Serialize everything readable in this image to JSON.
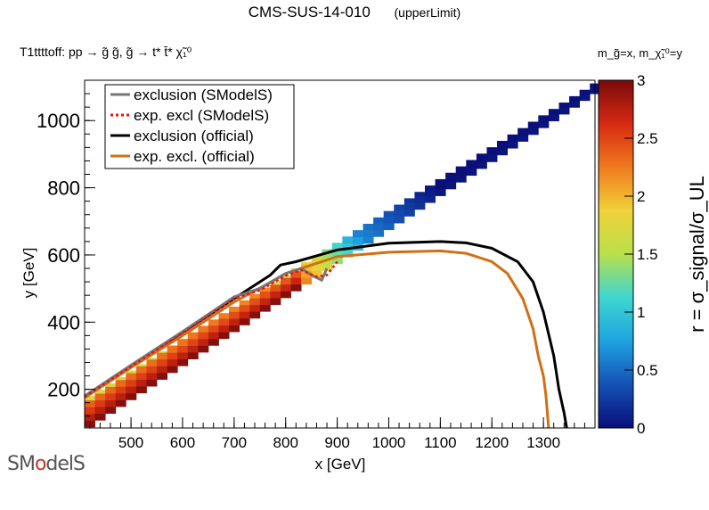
{
  "header": {
    "title": "CMS-SUS-14-010",
    "subtitle": "(upperLimit)",
    "process": "T1ttttoff: pp → g̃ g̃, g̃ → t* t̄* χ̃₁⁰",
    "mass_assignment": "m_g̃=x, m_χ̃₁⁰=y"
  },
  "logo": {
    "text_a": "SM",
    "text_b": "o",
    "text_c": "delS"
  },
  "chart_data": {
    "type": "heatmap",
    "xlabel": "x [GeV]",
    "ylabel": "y [GeV]",
    "zlabel": "r = σ_signal/σ_UL",
    "xlim": [
      410,
      1400
    ],
    "ylim": [
      85,
      1120
    ],
    "zlim": [
      0,
      3
    ],
    "x_ticks": [
      500,
      600,
      700,
      800,
      900,
      1000,
      1100,
      1200,
      1300
    ],
    "y_ticks": [
      200,
      400,
      600,
      800,
      1000
    ],
    "z_ticks": [
      0,
      0.5,
      1,
      1.5,
      2,
      2.5,
      3
    ],
    "colorscale": [
      "#0a0f7a",
      "#1451b5",
      "#1ea3e0",
      "#3fd6d0",
      "#b8e04a",
      "#f0d23a",
      "#f07a1e",
      "#d62a12",
      "#7a0a0a"
    ],
    "legend": {
      "placement": "top-left",
      "entries": [
        {
          "label": "exclusion (SModelS)",
          "color": "#777777",
          "dash": "solid"
        },
        {
          "label": "exp. excl (SModelS)",
          "color": "#ee1111",
          "dash": "dotted"
        },
        {
          "label": "exclusion (official)",
          "color": "#000000",
          "dash": "solid"
        },
        {
          "label": "exp. excl. (official)",
          "color": "#d26f16",
          "dash": "solid"
        }
      ]
    },
    "band": {
      "x_start": 410,
      "x_end": 1400,
      "step": 20,
      "y_low_at_start": 88,
      "y_high_at_start": 180,
      "y_low_at_end": 1090,
      "y_high_at_end": 1120,
      "transition_x": [
        830,
        950
      ]
    },
    "series": [
      {
        "name": "exclusion (official)",
        "x": [
          410,
          500,
          600,
          700,
          770,
          790,
          820,
          900,
          1000,
          1100,
          1150,
          1200,
          1250,
          1280,
          1300,
          1320,
          1330,
          1340,
          1345
        ],
        "y": [
          180,
          270,
          370,
          470,
          540,
          570,
          580,
          615,
          635,
          640,
          636,
          620,
          580,
          520,
          430,
          300,
          200,
          130,
          85
        ]
      },
      {
        "name": "exp. excl. (official)",
        "x": [
          410,
          500,
          600,
          700,
          760,
          800,
          850,
          900,
          1000,
          1100,
          1150,
          1200,
          1230,
          1260,
          1280,
          1290,
          1300,
          1305,
          1310
        ],
        "y": [
          175,
          265,
          360,
          460,
          510,
          545,
          570,
          595,
          608,
          612,
          605,
          580,
          545,
          470,
          380,
          300,
          240,
          180,
          85
        ]
      },
      {
        "name": "exclusion (SModelS)",
        "x": [
          410,
          500,
          600,
          700,
          750,
          800,
          830,
          850,
          870,
          880
        ],
        "y": [
          180,
          272,
          372,
          475,
          500,
          545,
          560,
          540,
          525,
          560
        ]
      },
      {
        "name": "exp. excl (SModelS)",
        "x": [
          410,
          500,
          600,
          700,
          750,
          800,
          830,
          860,
          880,
          900
        ],
        "y": [
          178,
          268,
          368,
          470,
          495,
          538,
          555,
          535,
          540,
          580
        ]
      }
    ]
  }
}
